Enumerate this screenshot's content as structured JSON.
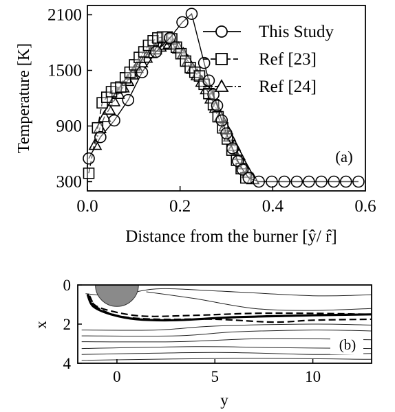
{
  "chart_data": [
    {
      "type": "line",
      "panel_label": "(a)",
      "xlabel": "Distance from the burner [ŷ/ r̂]",
      "ylabel": "Temperature [K]",
      "xlim": [
        0.0,
        0.6
      ],
      "ylim": [
        200,
        2200
      ],
      "xticks": [
        0.0,
        0.2,
        0.4,
        0.6
      ],
      "xtick_labels": [
        "0.0",
        "0.2",
        "0.4",
        "0.6"
      ],
      "yticks": [
        300,
        900,
        1500,
        2100
      ],
      "ytick_labels": [
        "300",
        "900",
        "1500",
        "2100"
      ],
      "grid": false,
      "legend_position": "top-right",
      "series": [
        {
          "name": "This Study",
          "marker": "circle",
          "line": "solid",
          "points": [
            [
              0.003,
              550
            ],
            [
              0.028,
              780
            ],
            [
              0.058,
              960
            ],
            [
              0.088,
              1180
            ],
            [
              0.118,
              1480
            ],
            [
              0.148,
              1700
            ],
            [
              0.178,
              1850
            ],
            [
              0.205,
              2020
            ],
            [
              0.225,
              2110
            ],
            [
              0.252,
              1580
            ],
            [
              0.262,
              1390
            ],
            [
              0.272,
              1240
            ],
            [
              0.28,
              1120
            ],
            [
              0.29,
              960
            ],
            [
              0.3,
              820
            ],
            [
              0.313,
              660
            ],
            [
              0.325,
              520
            ],
            [
              0.335,
              430
            ],
            [
              0.348,
              340
            ],
            [
              0.37,
              300
            ],
            [
              0.398,
              300
            ],
            [
              0.425,
              300
            ],
            [
              0.452,
              300
            ],
            [
              0.478,
              300
            ],
            [
              0.505,
              300
            ],
            [
              0.532,
              300
            ],
            [
              0.558,
              300
            ],
            [
              0.585,
              300
            ]
          ]
        },
        {
          "name": "Ref [23]",
          "marker": "square",
          "line": "dashed",
          "points": [
            [
              0.003,
              390
            ],
            [
              0.022,
              880
            ],
            [
              0.032,
              1150
            ],
            [
              0.042,
              1210
            ],
            [
              0.052,
              1270
            ],
            [
              0.062,
              1310
            ],
            [
              0.072,
              1320
            ],
            [
              0.082,
              1420
            ],
            [
              0.092,
              1480
            ],
            [
              0.102,
              1560
            ],
            [
              0.112,
              1640
            ],
            [
              0.122,
              1700
            ],
            [
              0.132,
              1770
            ],
            [
              0.142,
              1820
            ],
            [
              0.152,
              1850
            ],
            [
              0.162,
              1860
            ],
            [
              0.172,
              1860
            ],
            [
              0.182,
              1840
            ],
            [
              0.192,
              1750
            ],
            [
              0.202,
              1680
            ],
            [
              0.212,
              1600
            ],
            [
              0.222,
              1530
            ],
            [
              0.232,
              1480
            ],
            [
              0.242,
              1440
            ],
            [
              0.252,
              1350
            ],
            [
              0.262,
              1250
            ],
            [
              0.272,
              1130
            ],
            [
              0.282,
              1000
            ],
            [
              0.292,
              880
            ],
            [
              0.302,
              760
            ],
            [
              0.312,
              640
            ],
            [
              0.322,
              530
            ],
            [
              0.332,
              440
            ],
            [
              0.342,
              340
            ]
          ]
        },
        {
          "name": "Ref [24]",
          "marker": "triangle",
          "line": "dashdot",
          "points": [
            [
              0.017,
              700
            ],
            [
              0.027,
              880
            ],
            [
              0.037,
              1000
            ],
            [
              0.047,
              1080
            ],
            [
              0.057,
              1170
            ],
            [
              0.067,
              1250
            ],
            [
              0.077,
              1320
            ],
            [
              0.087,
              1390
            ],
            [
              0.097,
              1460
            ],
            [
              0.107,
              1530
            ],
            [
              0.117,
              1590
            ],
            [
              0.127,
              1640
            ],
            [
              0.137,
              1690
            ],
            [
              0.147,
              1730
            ],
            [
              0.157,
              1760
            ],
            [
              0.167,
              1780
            ],
            [
              0.177,
              1790
            ],
            [
              0.187,
              1780
            ],
            [
              0.197,
              1740
            ],
            [
              0.207,
              1680
            ],
            [
              0.217,
              1600
            ],
            [
              0.227,
              1520
            ],
            [
              0.237,
              1450
            ],
            [
              0.247,
              1380
            ],
            [
              0.257,
              1300
            ],
            [
              0.267,
              1200
            ],
            [
              0.277,
              1100
            ],
            [
              0.287,
              1000
            ],
            [
              0.297,
              900
            ],
            [
              0.307,
              790
            ],
            [
              0.317,
              690
            ],
            [
              0.327,
              590
            ],
            [
              0.337,
              490
            ],
            [
              0.347,
              400
            ],
            [
              0.357,
              330
            ]
          ]
        }
      ]
    },
    {
      "type": "diagram",
      "panel_label": "(b)",
      "xlabel": "y",
      "ylabel": "x",
      "xlim": [
        -2,
        13
      ],
      "ylim": [
        0,
        4
      ],
      "x_inverted": false,
      "y_inverted": true,
      "xticks": [
        0,
        5,
        10
      ],
      "xtick_labels": [
        "0",
        "5",
        "10"
      ],
      "yticks": [
        0,
        2,
        4
      ],
      "ytick_labels": [
        "0",
        "2",
        "4"
      ],
      "burner": {
        "center": [
          0,
          0
        ],
        "radius": 1.1,
        "color": "#8a8a8a"
      },
      "streamlines": [
        [
          [
            -1.6,
            0.45
          ],
          [
            0,
            0.55
          ],
          [
            2,
            0.2
          ],
          [
            5,
            0.3
          ],
          [
            10,
            0.55
          ],
          [
            13,
            0.5
          ]
        ],
        [
          [
            1.5,
            0.35
          ],
          [
            4,
            0.7
          ],
          [
            7,
            1.2
          ],
          [
            10,
            1.3
          ],
          [
            13,
            1.2
          ]
        ],
        [
          [
            -1.8,
            2.3
          ],
          [
            2,
            2.3
          ],
          [
            5,
            2.1
          ],
          [
            10,
            2.0
          ],
          [
            13,
            2.05
          ]
        ],
        [
          [
            -1.8,
            2.6
          ],
          [
            3,
            2.6
          ],
          [
            6,
            2.4
          ],
          [
            10,
            2.3
          ],
          [
            13,
            2.35
          ]
        ],
        [
          [
            -1.8,
            2.9
          ],
          [
            3,
            2.9
          ],
          [
            7,
            2.75
          ],
          [
            10,
            2.75
          ],
          [
            13,
            2.8
          ]
        ],
        [
          [
            -1.8,
            3.25
          ],
          [
            4,
            3.15
          ],
          [
            8,
            3.2
          ],
          [
            13,
            3.25
          ]
        ],
        [
          [
            -1.8,
            3.55
          ],
          [
            5,
            3.45
          ],
          [
            10,
            3.55
          ],
          [
            13,
            3.5
          ]
        ],
        [
          [
            -1.8,
            3.85
          ],
          [
            6,
            3.75
          ],
          [
            13,
            3.8
          ]
        ]
      ],
      "flame_fronts": [
        {
          "style": "solid-thick",
          "points": [
            [
              -1.5,
              0.5
            ],
            [
              -1.2,
              1.1
            ],
            [
              -0.3,
              1.5
            ],
            [
              1,
              1.75
            ],
            [
              3,
              1.8
            ],
            [
              6,
              1.65
            ],
            [
              10,
              1.55
            ],
            [
              13,
              1.5
            ]
          ]
        },
        {
          "style": "dashed",
          "points": [
            [
              -1.5,
              0.45
            ],
            [
              -1.1,
              1.05
            ],
            [
              0,
              1.4
            ],
            [
              1.5,
              1.6
            ],
            [
              4,
              1.55
            ],
            [
              7,
              1.45
            ],
            [
              10,
              1.45
            ],
            [
              13,
              1.5
            ]
          ]
        },
        {
          "style": "dashed",
          "points": [
            [
              -1.4,
              0.55
            ],
            [
              -1,
              1.15
            ],
            [
              0.2,
              1.6
            ],
            [
              2,
              1.75
            ],
            [
              5,
              1.75
            ],
            [
              8,
              1.9
            ],
            [
              10,
              1.8
            ],
            [
              13,
              1.75
            ]
          ]
        }
      ]
    }
  ],
  "legend": [
    {
      "label": "This Study",
      "marker": "circle",
      "line": "solid"
    },
    {
      "label": "Ref [23]",
      "marker": "square",
      "line": "dashed"
    },
    {
      "label": "Ref [24]",
      "marker": "triangle",
      "line": "dashdot"
    }
  ]
}
